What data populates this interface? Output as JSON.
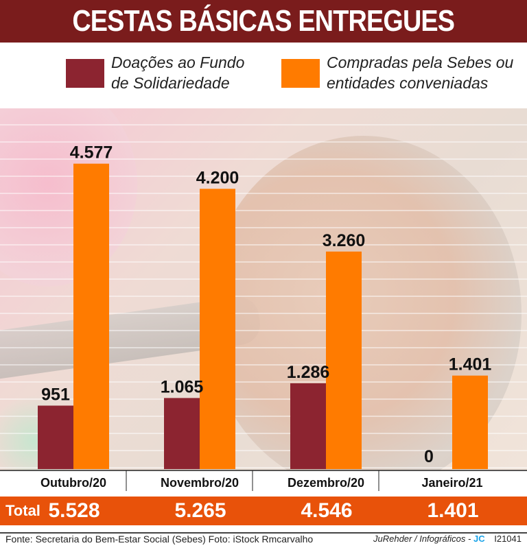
{
  "title": "CESTAS BÁSICAS ENTREGUES",
  "legend": {
    "donations": {
      "line1": "Doações ao Fundo",
      "line2": "de Solidariedade",
      "color": "#8c2430"
    },
    "purchased": {
      "line1": "Compradas pela Sebes ou",
      "line2": "entidades conveniadas",
      "color": "#ff7b00"
    }
  },
  "chart_data": {
    "type": "bar",
    "title": "CESTAS BÁSICAS ENTREGUES",
    "xlabel": "",
    "ylabel": "",
    "ylim": [
      0,
      5000
    ],
    "categories": [
      "Outubro/20",
      "Novembro/20",
      "Dezembro/20",
      "Janeiro/21"
    ],
    "series": [
      {
        "name": "Doações ao Fundo de Solidariedade",
        "values": [
          951,
          1065,
          1286,
          0
        ],
        "labels": [
          "951",
          "1.065",
          "1.286",
          "0"
        ],
        "color": "#8c2430"
      },
      {
        "name": "Compradas pela Sebes ou entidades conveniadas",
        "values": [
          4577,
          4200,
          3260,
          1401
        ],
        "labels": [
          "4.577",
          "4.200",
          "3.260",
          "1.401"
        ],
        "color": "#ff7b00"
      }
    ],
    "grid": true
  },
  "totals": {
    "label": "Total",
    "values": [
      "5.528",
      "5.265",
      "4.546",
      "1.401"
    ]
  },
  "footer": {
    "source": "Fonte: Secretaria do Bem-Estar Social (Sebes) Foto: iStock Rmcarvalho",
    "credit": "JuRehder  /  Infográficos -",
    "brand": "JC",
    "code": "I21041"
  }
}
